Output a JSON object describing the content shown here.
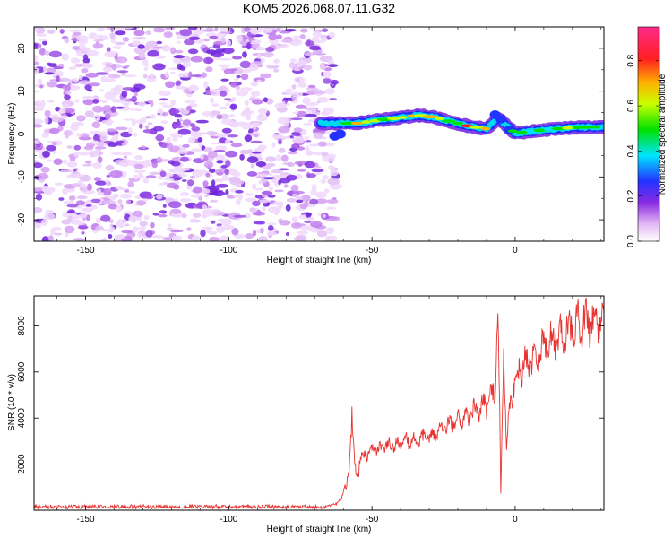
{
  "title": "KOM5.2026.068.07.11.G32",
  "chart_data": [
    {
      "type": "heatmap",
      "name": "spectrogram",
      "xlabel": "Height of straight line (km)",
      "ylabel": "Frequency (Hz)",
      "xlim": [
        -168,
        31
      ],
      "ylim": [
        -25,
        25
      ],
      "xticks": [
        -150,
        -100,
        -50,
        0
      ],
      "yticks": [
        -20,
        -10,
        0,
        10,
        20
      ],
      "xtick_labels": [
        "-150",
        "-100",
        "-50",
        "0"
      ],
      "ytick_labels": [
        "-20",
        "-10",
        "0",
        "10",
        "20"
      ],
      "noise_region_x": [
        -168,
        -65
      ],
      "signal_track": {
        "x": [
          -68,
          -62,
          -55,
          -48,
          -40,
          -34,
          -28,
          -22,
          -16,
          -10,
          -6,
          -3,
          0,
          4,
          8,
          14,
          20,
          26,
          31
        ],
        "freq": [
          2.5,
          2.5,
          2.5,
          3.2,
          3.8,
          4.4,
          3.9,
          2.8,
          1.8,
          1.2,
          3.8,
          2.0,
          0.2,
          0.5,
          0.8,
          1.2,
          1.5,
          1.6,
          1.7
        ],
        "amplitude": [
          0.2,
          0.3,
          0.85,
          0.8,
          0.7,
          0.7,
          0.85,
          0.6,
          0.9,
          0.8,
          0.3,
          0.3,
          0.85,
          0.5,
          0.6,
          0.5,
          0.7,
          0.5,
          0.6
        ]
      },
      "colorbar": {
        "label": "Normalized spectral amplitude",
        "range": [
          0.0,
          0.95
        ],
        "ticks": [
          0.0,
          0.2,
          0.4,
          0.6,
          0.8
        ],
        "tick_labels": [
          "0.0",
          "0.2",
          "0.4",
          "0.6",
          "0.8"
        ]
      }
    },
    {
      "type": "line",
      "name": "snr",
      "xlabel": "Height of straight line (km)",
      "ylabel": "SNR (10 * v/v)",
      "xlim": [
        -168,
        31
      ],
      "ylim": [
        0,
        9300
      ],
      "xticks": [
        -150,
        -100,
        -50,
        0
      ],
      "yticks": [
        2000,
        4000,
        6000,
        8000
      ],
      "xtick_labels": [
        "-150",
        "-100",
        "-50",
        "0"
      ],
      "ytick_labels": [
        "2000",
        "4000",
        "6000",
        "8000"
      ],
      "color": "#e8322f",
      "anchors": {
        "x": [
          -168,
          -66,
          -62,
          -60,
          -58,
          -57,
          -56,
          -55,
          -54,
          -52,
          -48,
          -40,
          -32,
          -26,
          -22,
          -18,
          -14,
          -10,
          -7,
          -6,
          -5,
          -4,
          -3,
          -2,
          0,
          4,
          8,
          12,
          18,
          24,
          31
        ],
        "y": [
          150,
          150,
          300,
          700,
          1500,
          4500,
          1900,
          1500,
          2200,
          2400,
          2700,
          2900,
          3100,
          3450,
          3800,
          4000,
          4300,
          4600,
          5200,
          9200,
          700,
          7000,
          2800,
          4300,
          5800,
          6400,
          6900,
          7300,
          7800,
          8200,
          8300
        ]
      }
    }
  ]
}
